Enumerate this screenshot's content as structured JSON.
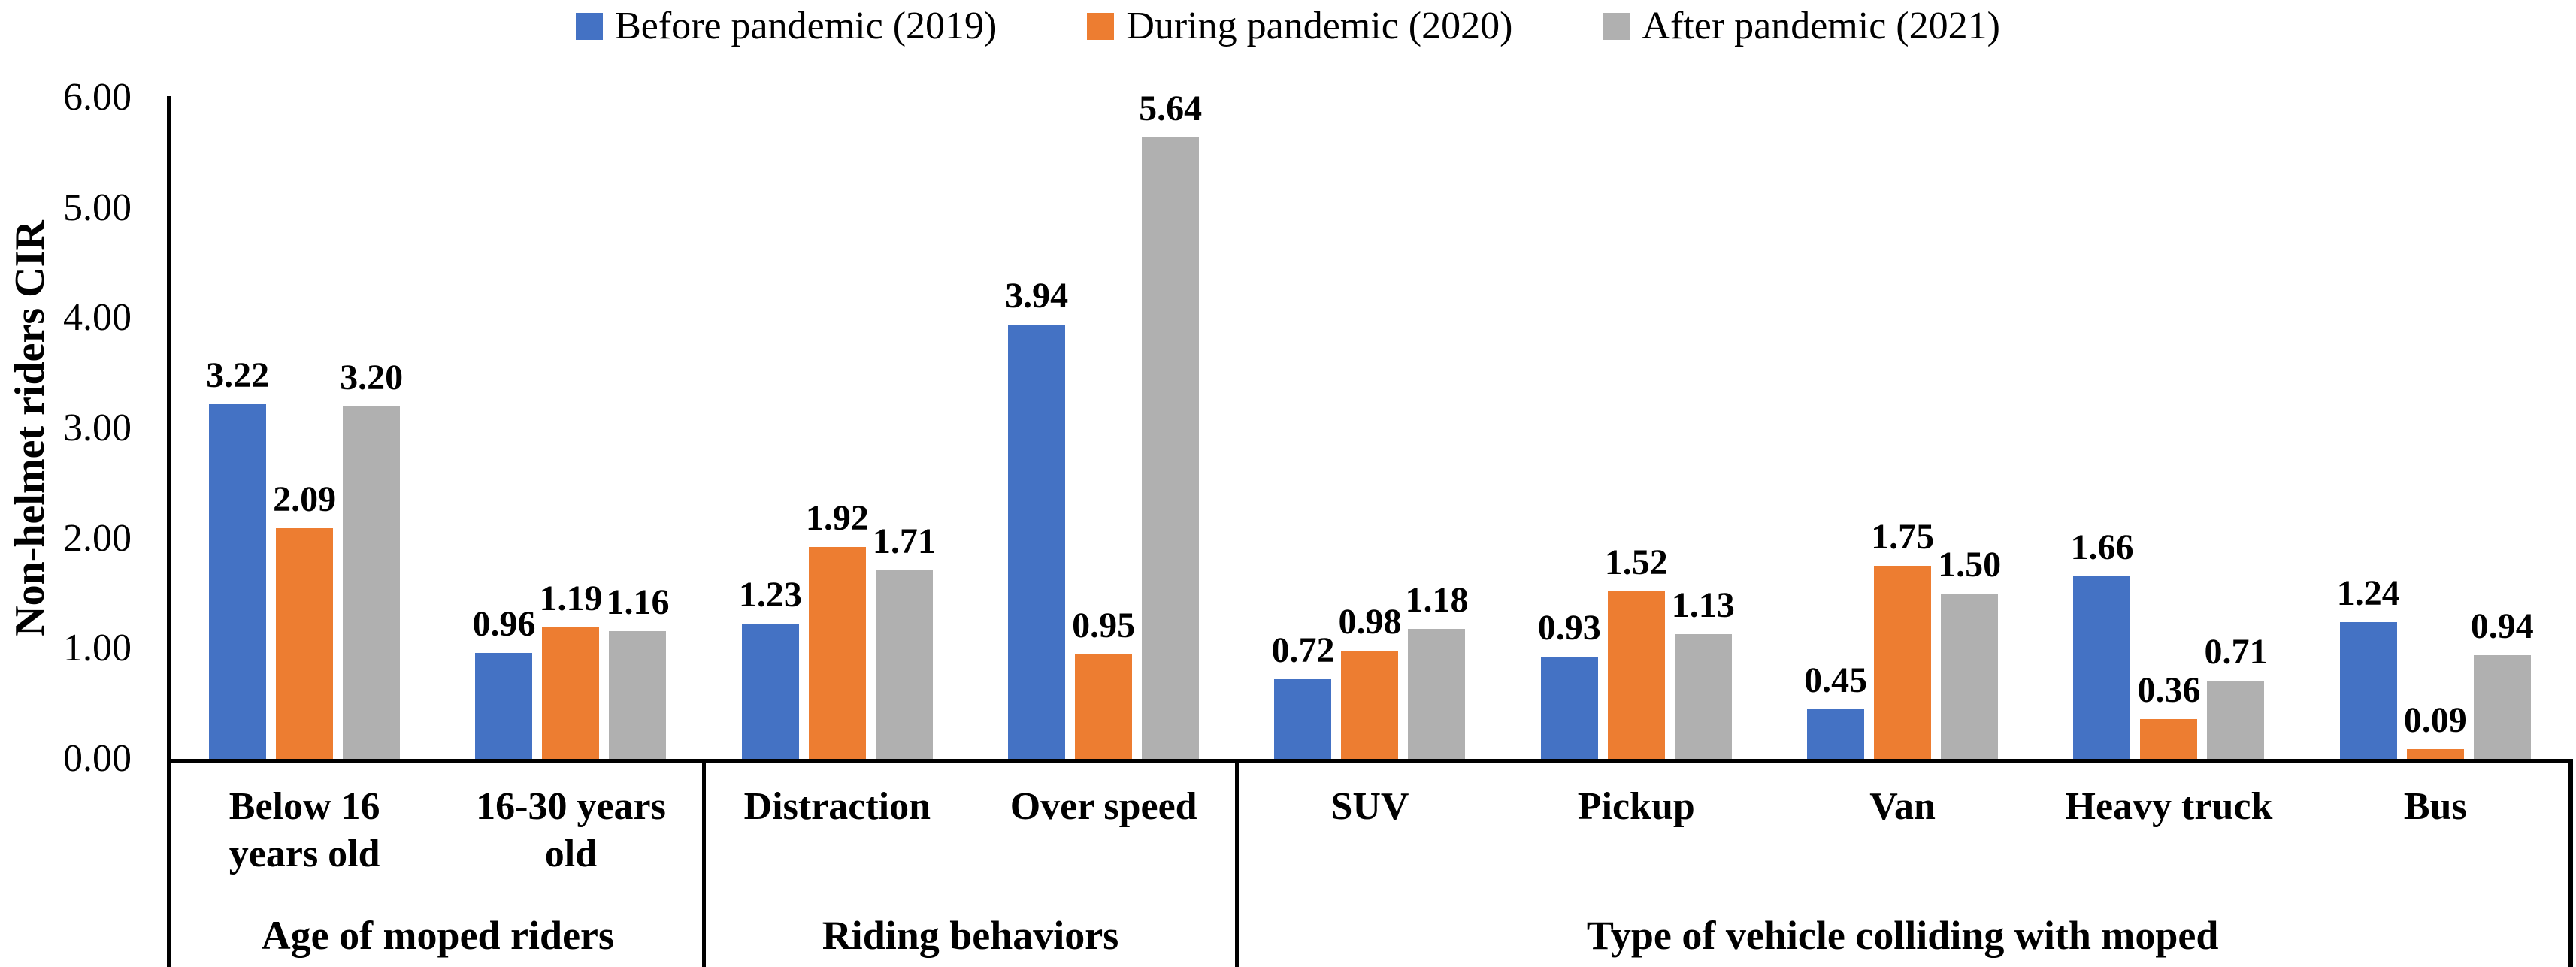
{
  "y_axis": {
    "title": "Non-helmet riders CIR",
    "ticks": [
      "0.00",
      "1.00",
      "2.00",
      "3.00",
      "4.00",
      "5.00",
      "6.00"
    ],
    "min": 0,
    "max": 6
  },
  "chart_data": {
    "type": "bar",
    "title": "",
    "xlabel": "",
    "ylabel": "Non-helmet riders CIR",
    "ylim": [
      0,
      6
    ],
    "grid": false,
    "legend_position": "top-center",
    "value_labels": true,
    "value_label_decimals": 2,
    "categories": [
      "Below 16 years old",
      "16-30 years old",
      "Distraction",
      "Over speed",
      "SUV",
      "Pickup",
      "Van",
      "Heavy truck",
      "Bus"
    ],
    "category_groups": [
      {
        "label": "Age of moped riders",
        "span": 2
      },
      {
        "label": "Riding behaviors",
        "span": 2
      },
      {
        "label": "Type of vehicle colliding with moped",
        "span": 5
      }
    ],
    "series": [
      {
        "name": "Before pandemic (2019)",
        "color": "#4472C4",
        "values": [
          3.22,
          0.96,
          1.23,
          3.94,
          0.72,
          0.93,
          0.45,
          1.66,
          1.24
        ]
      },
      {
        "name": "During pandemic (2020)",
        "color": "#ED7D31",
        "values": [
          2.09,
          1.19,
          1.92,
          0.95,
          0.98,
          1.52,
          1.75,
          0.36,
          0.09
        ]
      },
      {
        "name": "After pandemic (2021)",
        "color": "#B0B0B0",
        "values": [
          3.2,
          1.16,
          1.71,
          5.64,
          1.18,
          1.13,
          1.5,
          0.71,
          0.94
        ]
      }
    ],
    "axis_color": "#000000",
    "background_color": "#FFFFFF"
  }
}
